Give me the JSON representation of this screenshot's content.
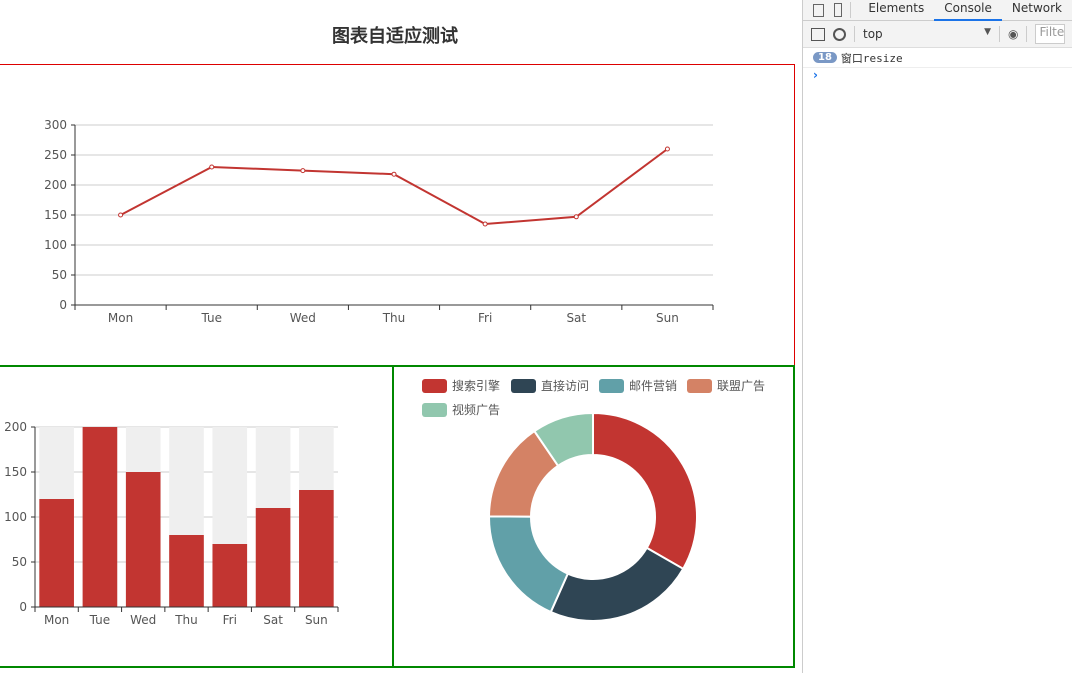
{
  "page_title": "图表自适应测试",
  "devtools": {
    "tabs": [
      "Elements",
      "Console",
      "Network"
    ],
    "active_tab": "Console",
    "context": "top",
    "filter_placeholder": "Filter",
    "log": {
      "count": "18",
      "message": "窗口resize"
    },
    "prompt": "›"
  },
  "chart_data": [
    {
      "type": "line",
      "categories": [
        "Mon",
        "Tue",
        "Wed",
        "Thu",
        "Fri",
        "Sat",
        "Sun"
      ],
      "values": [
        150,
        230,
        224,
        218,
        135,
        147,
        260
      ],
      "yticks": [
        "0",
        "50",
        "100",
        "150",
        "200",
        "250",
        "300"
      ],
      "ylim": [
        0,
        300
      ],
      "color": "#c23531",
      "grid": true
    },
    {
      "type": "bar",
      "categories": [
        "Mon",
        "Tue",
        "Wed",
        "Thu",
        "Fri",
        "Sat",
        "Sun"
      ],
      "values": [
        120,
        200,
        150,
        80,
        70,
        110,
        130
      ],
      "yticks": [
        "0",
        "50",
        "100",
        "150",
        "200"
      ],
      "ylim": [
        0,
        200
      ],
      "color": "#c23531",
      "background_color": "#efefef",
      "grid": true
    },
    {
      "type": "pie",
      "donut": true,
      "legend_position": "top-left",
      "slices": [
        {
          "name": "搜索引擎",
          "value": 1048,
          "color": "#c23531"
        },
        {
          "name": "直接访问",
          "value": 735,
          "color": "#2f4554"
        },
        {
          "name": "邮件营销",
          "value": 580,
          "color": "#61a0a8"
        },
        {
          "name": "联盟广告",
          "value": 484,
          "color": "#d48265"
        },
        {
          "name": "视频广告",
          "value": 300,
          "color": "#91c7ae"
        }
      ]
    }
  ]
}
